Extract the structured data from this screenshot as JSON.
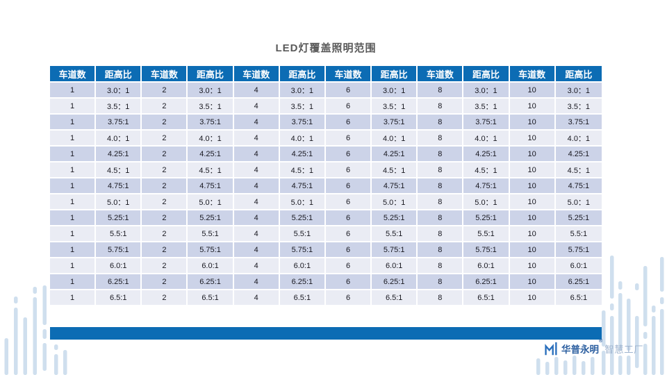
{
  "title": "LED灯覆盖照明范围",
  "table": {
    "header_pair": {
      "lanes_label": "车道数",
      "ratio_label": "距高比"
    },
    "lane_groups": [
      "1",
      "2",
      "4",
      "6",
      "8",
      "10"
    ],
    "ratio_rows": [
      "3.0：1",
      "3.5：1",
      "3.75:1",
      "4.0：1",
      "4.25:1",
      "4.5：1",
      "4.75:1",
      "5.0：1",
      "5.25:1",
      "5.5:1",
      "5.75:1",
      "6.0:1",
      "6.25:1",
      "6.5:1"
    ]
  },
  "logo": {
    "brand": "华普永明",
    "reg_mark": "®",
    "suffix": "智慧工厂"
  },
  "colors": {
    "accent_blue": "#0c6cb4",
    "row_stripe_dark": "#ccd3e8",
    "row_stripe_light": "#eaecf4",
    "title_gray": "#595959",
    "decor_bar_blue": "#cfdfee",
    "logo_brand_blue": "#2c5fa0",
    "logo_suffix_blue": "#9fb4cf"
  }
}
